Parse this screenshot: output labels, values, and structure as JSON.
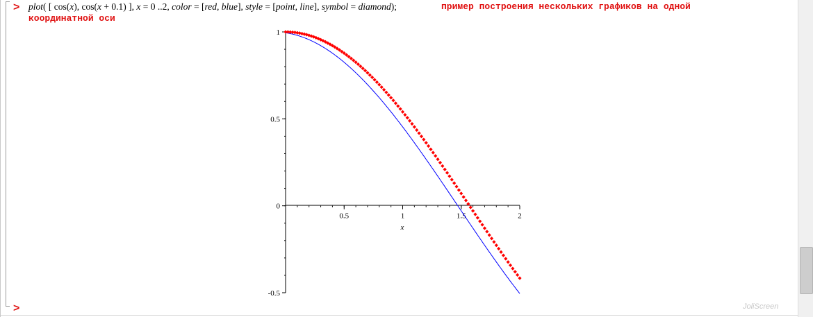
{
  "worksheet": {
    "prompt_symbol": ">",
    "input": {
      "fn": "plot",
      "text_parts": [
        "( [ cos(",
        "x",
        "), cos(",
        "x",
        " + 0.1) ], ",
        "x",
        " = 0 ..2, ",
        "color",
        " = [",
        "red, blue",
        "], ",
        "style",
        " = [",
        "point, line",
        "], ",
        "symbol",
        " = ",
        "diamond",
        ");"
      ],
      "comment_line1": "пример построения нескольких графиков на одной",
      "comment_line2": "координатной оси"
    }
  },
  "chart_data": {
    "type": "line",
    "xlabel": "x",
    "xlim": [
      0,
      2
    ],
    "ylim": [
      -0.5,
      1
    ],
    "x_ticks": [
      "0.5",
      "1",
      "1.5",
      "2"
    ],
    "y_ticks": [
      "1",
      "0.5",
      "0",
      "-0.5"
    ],
    "series": [
      {
        "expression": "cos(x)",
        "color": "#ff0000",
        "style": "point",
        "symbol": "diamond"
      },
      {
        "expression": "cos(x + 0.1)",
        "color": "#0000ff",
        "style": "line"
      }
    ],
    "sample_step": 0.02
  },
  "watermark": "JoliScreen"
}
